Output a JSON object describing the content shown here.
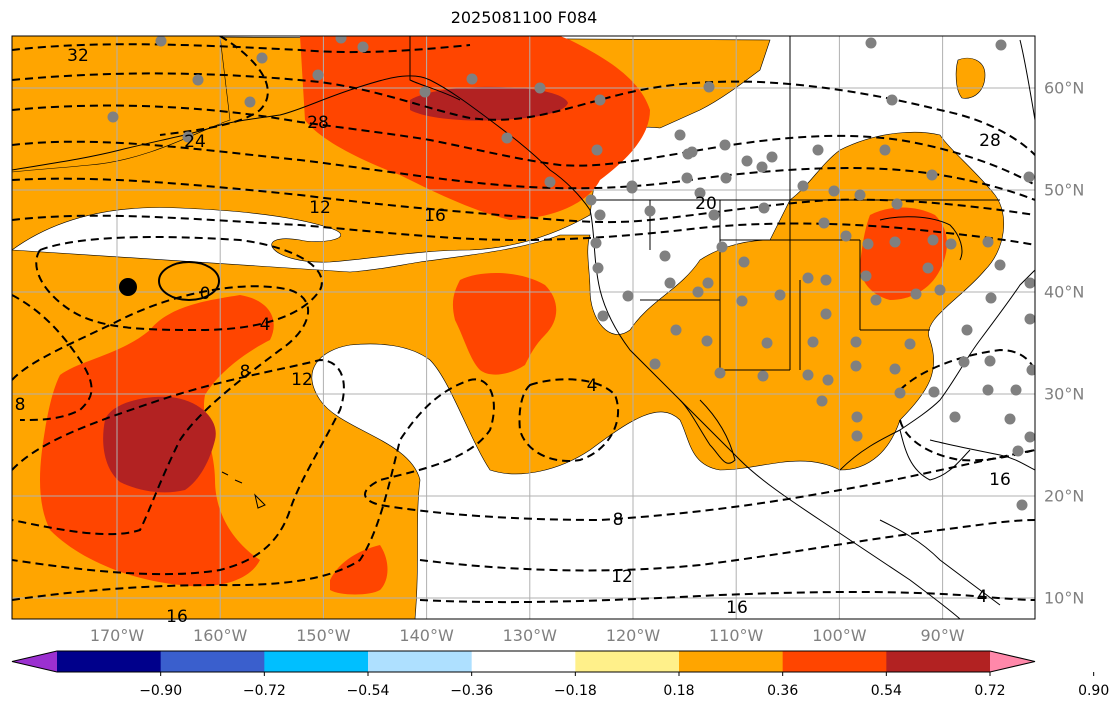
{
  "title": "2025081100 F084",
  "lon_labels": [
    {
      "text": "170°W",
      "lon": -170
    },
    {
      "text": "160°W",
      "lon": -160
    },
    {
      "text": "150°W",
      "lon": -150
    },
    {
      "text": "140°W",
      "lon": -140
    },
    {
      "text": "130°W",
      "lon": -130
    },
    {
      "text": "120°W",
      "lon": -120
    },
    {
      "text": "110°W",
      "lon": -110
    },
    {
      "text": "100°W",
      "lon": -100
    },
    {
      "text": "90°W",
      "lon": -90
    }
  ],
  "lat_labels": [
    {
      "text": "60°N",
      "lat": 60
    },
    {
      "text": "50°N",
      "lat": 50
    },
    {
      "text": "40°N",
      "lat": 40
    },
    {
      "text": "30°N",
      "lat": 30
    },
    {
      "text": "20°N",
      "lat": 20
    },
    {
      "text": "10°N",
      "lat": 10
    }
  ],
  "contour_labels": [
    "32",
    "24",
    "28",
    "16",
    "12",
    "20",
    "28",
    "0",
    "4",
    "8",
    "8",
    "12",
    "4",
    "8",
    "12",
    "16",
    "16",
    "4",
    "16"
  ],
  "colorbar": {
    "ticks": [
      "−0.90",
      "−0.72",
      "−0.54",
      "−0.36",
      "−0.18",
      "0.18",
      "0.36",
      "0.54",
      "0.72",
      "0.90"
    ],
    "colors": [
      "#9b30d0",
      "#00008b",
      "#3a5fcd",
      "#00bfff",
      "#aee0ff",
      "#ffffff",
      "#fff08a",
      "#ffa500",
      "#ff4500",
      "#b22222",
      "#ff88aa"
    ]
  },
  "fill_colors": {
    "orange": "#ffa500",
    "red": "#ff4500",
    "darkred": "#b22222"
  }
}
